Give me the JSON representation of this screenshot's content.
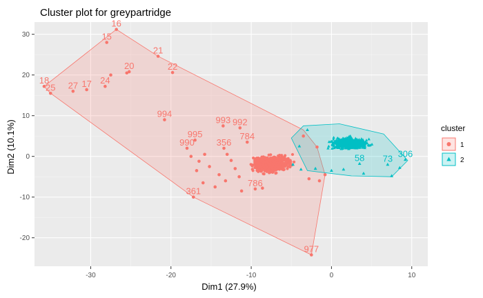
{
  "chart_data": {
    "type": "scatter",
    "title": "Cluster plot for greypartridge",
    "xlabel": "Dim1 (27.9%)",
    "ylabel": "Dim2 (10.1%)",
    "xlim": [
      -37,
      12
    ],
    "ylim": [
      -27,
      33
    ],
    "x_ticks": [
      -30,
      -20,
      -10,
      0,
      10
    ],
    "y_ticks": [
      -20,
      -10,
      0,
      10,
      20,
      30
    ],
    "grid": true,
    "legend": {
      "title": "cluster",
      "position": "right"
    },
    "series": [
      {
        "name": "1",
        "color": "#F8766D",
        "marker": "circle",
        "hull": [
          [
            -35.0,
            15.5
          ],
          [
            -35.8,
            17.2
          ],
          [
            -26.8,
            31.2
          ],
          [
            -21.6,
            24.6
          ],
          [
            -3.5,
            6.5
          ],
          [
            -1.8,
            2.3
          ],
          [
            -0.8,
            -4.5
          ],
          [
            -2.5,
            -24.2
          ],
          [
            -17.2,
            -10.0
          ]
        ],
        "labeled_points": [
          {
            "label": "16",
            "x": -26.8,
            "y": 31.2
          },
          {
            "label": "15",
            "x": -28.0,
            "y": 28.0
          },
          {
            "label": "21",
            "x": -21.6,
            "y": 24.6
          },
          {
            "label": "20",
            "x": -25.2,
            "y": 20.8
          },
          {
            "label": "22",
            "x": -19.8,
            "y": 20.6
          },
          {
            "label": "18",
            "x": -35.8,
            "y": 17.2
          },
          {
            "label": "25",
            "x": -35.0,
            "y": 15.5
          },
          {
            "label": "27",
            "x": -32.2,
            "y": 16.0
          },
          {
            "label": "17",
            "x": -30.5,
            "y": 16.4
          },
          {
            "label": "24",
            "x": -28.2,
            "y": 17.2
          },
          {
            "label": "994",
            "x": -20.8,
            "y": 9.0
          },
          {
            "label": "993",
            "x": -13.5,
            "y": 7.5
          },
          {
            "label": "992",
            "x": -11.4,
            "y": 7.0
          },
          {
            "label": "995",
            "x": -17.0,
            "y": 4.0
          },
          {
            "label": "990",
            "x": -18.0,
            "y": 2.0
          },
          {
            "label": "356",
            "x": -13.4,
            "y": 2.0
          },
          {
            "label": "784",
            "x": -10.5,
            "y": 3.5
          },
          {
            "label": "361",
            "x": -17.2,
            "y": -10.0
          },
          {
            "label": "786",
            "x": -9.5,
            "y": -8.0
          },
          {
            "label": "977",
            "x": -2.5,
            "y": -24.2
          }
        ],
        "points": [
          [
            -16.5,
            -1.2
          ],
          [
            -15.2,
            -2.5
          ],
          [
            -14.0,
            -4.5
          ],
          [
            -13.2,
            -6.0
          ],
          [
            -14.5,
            -7.5
          ],
          [
            -16.0,
            -6.5
          ],
          [
            -12.0,
            -3.0
          ],
          [
            -11.5,
            -5.0
          ],
          [
            -13.0,
            0.5
          ],
          [
            -12.5,
            -1.0
          ],
          [
            -15.8,
            0.5
          ],
          [
            -17.5,
            0.0
          ],
          [
            -16.8,
            -3.5
          ],
          [
            -11.2,
            -8.5
          ],
          [
            -8.6,
            -7.8
          ],
          [
            -3.5,
            5.0
          ],
          [
            -1.8,
            2.3
          ],
          [
            -0.8,
            -4.5
          ],
          [
            -1.5,
            -6.0
          ],
          [
            -2.8,
            -5.5
          ],
          [
            -25.5,
            20.5
          ],
          [
            -27.5,
            20.0
          ]
        ]
      },
      {
        "name": "2",
        "color": "#00BFC4",
        "marker": "triangle",
        "hull": [
          [
            -5.0,
            4.5
          ],
          [
            -3.5,
            7.5
          ],
          [
            1.0,
            8.0
          ],
          [
            6.5,
            5.5
          ],
          [
            9.5,
            -1.0
          ],
          [
            7.5,
            -5.0
          ],
          [
            2.5,
            -4.8
          ],
          [
            -3.0,
            -3.5
          ]
        ],
        "labeled_points": [
          {
            "label": "306",
            "x": 9.2,
            "y": -0.8
          },
          {
            "label": "73",
            "x": 7.0,
            "y": -2.0
          },
          {
            "label": "58",
            "x": 3.5,
            "y": -1.8
          }
        ],
        "points": [
          [
            -4.8,
            -2.0
          ],
          [
            -3.8,
            -3.2
          ],
          [
            -2.0,
            -3.0
          ],
          [
            0.0,
            -3.5
          ],
          [
            1.5,
            -3.2
          ],
          [
            4.0,
            -4.2
          ],
          [
            7.5,
            -4.8
          ],
          [
            8.5,
            -2.8
          ],
          [
            -4.0,
            2.5
          ],
          [
            -3.0,
            6.5
          ]
        ]
      }
    ]
  }
}
